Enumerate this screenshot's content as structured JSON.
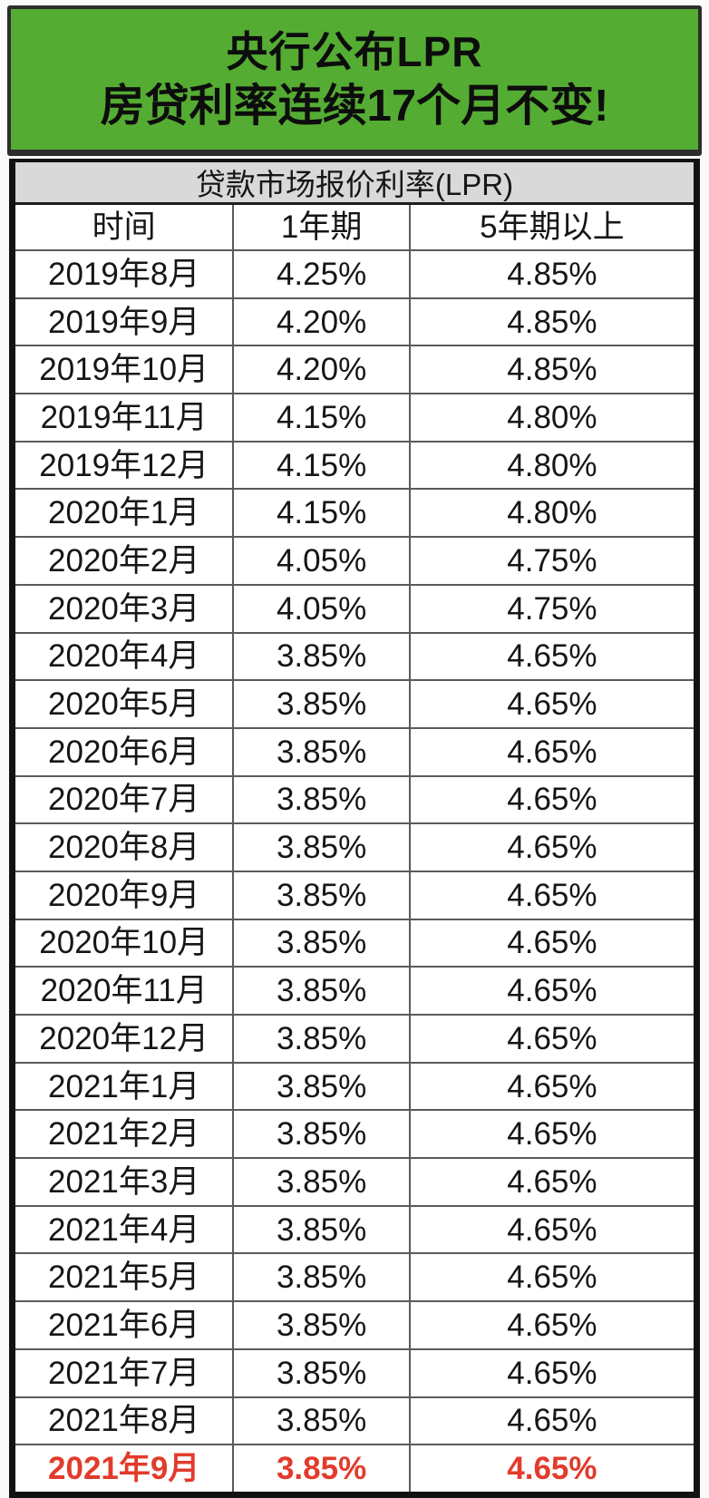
{
  "banner": {
    "line1": "央行公布LPR",
    "line2": "房贷利率连续17个月不变!",
    "bg_color": "#55AC33",
    "text_color": "#0d0d0d"
  },
  "chart_data": {
    "type": "table",
    "title": "贷款市场报价利率(LPR)",
    "columns": [
      "时间",
      "1年期",
      "5年期以上"
    ],
    "rows": [
      [
        "2019年8月",
        "4.25%",
        "4.85%"
      ],
      [
        "2019年9月",
        "4.20%",
        "4.85%"
      ],
      [
        "2019年10月",
        "4.20%",
        "4.85%"
      ],
      [
        "2019年11月",
        "4.15%",
        "4.80%"
      ],
      [
        "2019年12月",
        "4.15%",
        "4.80%"
      ],
      [
        "2020年1月",
        "4.15%",
        "4.80%"
      ],
      [
        "2020年2月",
        "4.05%",
        "4.75%"
      ],
      [
        "2020年3月",
        "4.05%",
        "4.75%"
      ],
      [
        "2020年4月",
        "3.85%",
        "4.65%"
      ],
      [
        "2020年5月",
        "3.85%",
        "4.65%"
      ],
      [
        "2020年6月",
        "3.85%",
        "4.65%"
      ],
      [
        "2020年7月",
        "3.85%",
        "4.65%"
      ],
      [
        "2020年8月",
        "3.85%",
        "4.65%"
      ],
      [
        "2020年9月",
        "3.85%",
        "4.65%"
      ],
      [
        "2020年10月",
        "3.85%",
        "4.65%"
      ],
      [
        "2020年11月",
        "3.85%",
        "4.65%"
      ],
      [
        "2020年12月",
        "3.85%",
        "4.65%"
      ],
      [
        "2021年1月",
        "3.85%",
        "4.65%"
      ],
      [
        "2021年2月",
        "3.85%",
        "4.65%"
      ],
      [
        "2021年3月",
        "3.85%",
        "4.65%"
      ],
      [
        "2021年4月",
        "3.85%",
        "4.65%"
      ],
      [
        "2021年5月",
        "3.85%",
        "4.65%"
      ],
      [
        "2021年6月",
        "3.85%",
        "4.65%"
      ],
      [
        "2021年7月",
        "3.85%",
        "4.65%"
      ],
      [
        "2021年8月",
        "3.85%",
        "4.65%"
      ],
      [
        "2021年9月",
        "3.85%",
        "4.65%"
      ]
    ],
    "highlight_row_index": 25,
    "highlight_color": "#e23b2b",
    "title_bg_color": "#d9d9d9",
    "layout": {
      "grid": true,
      "legend": "none"
    }
  }
}
